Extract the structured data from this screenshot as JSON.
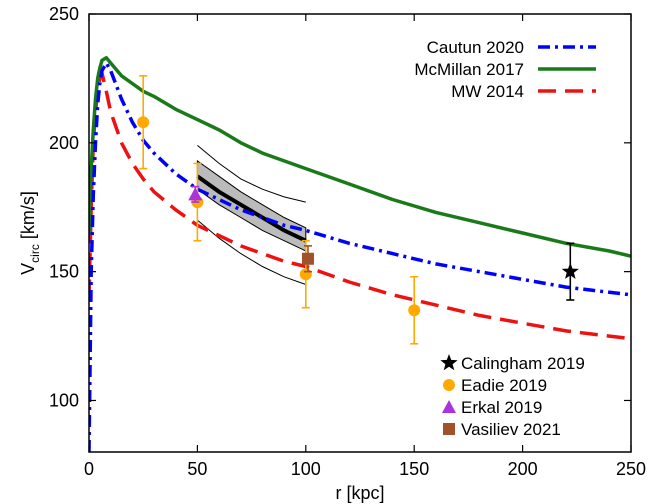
{
  "chart_data": {
    "type": "line",
    "xlabel": "r [kpc]",
    "ylabel": {
      "main": "V",
      "sub": "circ",
      "unit": " [km/s]"
    },
    "xlim": [
      0,
      250
    ],
    "ylim": [
      80,
      250
    ],
    "xticks": [
      0,
      50,
      100,
      150,
      200,
      250
    ],
    "yticks": [
      100,
      150,
      200,
      250
    ],
    "legend_lines_position": "top-right",
    "legend_points_position": "bottom-right",
    "series": [
      {
        "name": "Cautun 2020",
        "color": "#0000ff",
        "style": "dash-dot",
        "x": [
          0,
          1,
          2,
          3,
          4,
          5,
          6,
          8,
          10,
          15,
          20,
          25,
          30,
          40,
          50,
          60,
          70,
          80,
          90,
          100,
          120,
          140,
          160,
          180,
          200,
          220,
          240,
          250
        ],
        "y": [
          80,
          150,
          180,
          200,
          215,
          223,
          228,
          231,
          228,
          217,
          208,
          201,
          196,
          188,
          182,
          178,
          174,
          171,
          168,
          166,
          161,
          157,
          153,
          150,
          147,
          144,
          142,
          141
        ]
      },
      {
        "name": "McMillan 2017",
        "color": "#1a7a1a",
        "style": "solid",
        "x": [
          0,
          1,
          2,
          3,
          4,
          5,
          6,
          8,
          10,
          15,
          20,
          25,
          30,
          40,
          50,
          60,
          70,
          80,
          90,
          100,
          120,
          140,
          160,
          180,
          200,
          220,
          240,
          250
        ],
        "y": [
          165,
          190,
          205,
          217,
          225,
          229,
          232,
          233,
          231,
          226,
          223,
          220,
          218,
          213,
          209,
          205,
          200,
          196,
          193,
          190,
          184,
          178,
          173,
          169,
          165,
          161,
          158,
          156
        ]
      },
      {
        "name": "MW 2014",
        "color": "#ee1111",
        "style": "dashed",
        "x": [
          0,
          1,
          2,
          3,
          4,
          5,
          6,
          8,
          10,
          15,
          20,
          25,
          30,
          40,
          50,
          60,
          70,
          80,
          90,
          100,
          120,
          140,
          160,
          180,
          200,
          220,
          240,
          250
        ],
        "y": [
          140,
          175,
          200,
          212,
          220,
          225,
          227,
          220,
          212,
          200,
          192,
          186,
          181,
          174,
          168,
          164,
          160,
          157,
          154,
          152,
          146,
          141,
          137,
          133,
          130,
          127,
          125,
          124
        ]
      }
    ],
    "band": {
      "x": [
        50,
        60,
        70,
        80,
        90,
        100
      ],
      "center": [
        187,
        181,
        176,
        171,
        166,
        162
      ],
      "lower": [
        182,
        176,
        171,
        166,
        162,
        158
      ],
      "upper": [
        193,
        187,
        181,
        176,
        171,
        167
      ],
      "color": "#bbbbbb"
    },
    "thin_curves": [
      {
        "x": [
          50,
          60,
          70,
          80,
          90,
          100
        ],
        "y": [
          199,
          192,
          186,
          182,
          179,
          177
        ]
      },
      {
        "x": [
          50,
          60,
          70,
          80,
          90,
          100
        ],
        "y": [
          170,
          163,
          157,
          152,
          148,
          145
        ]
      }
    ],
    "points": [
      {
        "name": "Calingham 2019",
        "marker": "star",
        "color": "#000000",
        "x": [
          222
        ],
        "y": [
          150
        ],
        "err": [
          11
        ]
      },
      {
        "name": "Eadie 2019",
        "marker": "circle",
        "color": "#ffaa00",
        "x": [
          25,
          50,
          100,
          150
        ],
        "y": [
          208,
          177,
          149,
          135
        ],
        "err": [
          18,
          15,
          13,
          13
        ]
      },
      {
        "name": "Erkal 2019",
        "marker": "triangle",
        "color": "#aa33dd",
        "x": [
          49
        ],
        "y": [
          180
        ],
        "err": [
          3
        ]
      },
      {
        "name": "Vasiliev 2021",
        "marker": "square",
        "color": "#a0522d",
        "x": [
          101
        ],
        "y": [
          155
        ],
        "err": [
          5
        ]
      }
    ]
  }
}
